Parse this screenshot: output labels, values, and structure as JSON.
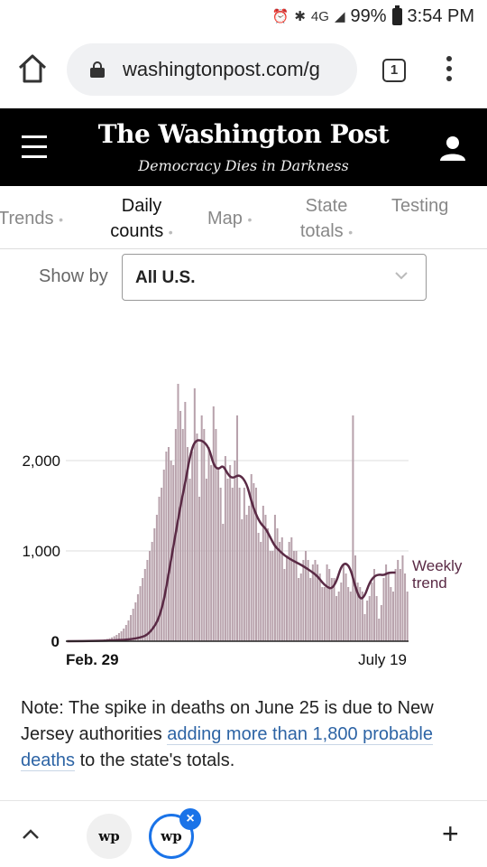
{
  "status_bar": {
    "network": "4G",
    "battery": "99%",
    "time": "3:54 PM"
  },
  "browser": {
    "url": "washingtonpost.com/g",
    "tab_count": "1"
  },
  "header": {
    "masthead": "The Washington Post",
    "tagline": "Democracy Dies in Darkness"
  },
  "tabs": [
    {
      "label": "Trends",
      "active": false
    },
    {
      "label": "Daily counts",
      "active": true
    },
    {
      "label": "Map",
      "active": false
    },
    {
      "label": "State totals",
      "active": false
    },
    {
      "label": "Testing",
      "active": false
    }
  ],
  "filter": {
    "label": "Show by",
    "value": "All U.S."
  },
  "chart_data": {
    "type": "bar",
    "x_start_label": "Feb. 29",
    "x_end_label": "July 19",
    "yticks": [
      0,
      1000,
      2000
    ],
    "ytick_labels": [
      "0",
      "1,000",
      "2,000"
    ],
    "ylim": [
      0,
      3000
    ],
    "bar_color": "#b8a2ac",
    "trend_color": "#5a2a45",
    "trend_label_line1": "Weekly",
    "trend_label_line2": "trend",
    "values": [
      0,
      0,
      0,
      0,
      1,
      1,
      1,
      2,
      2,
      3,
      4,
      5,
      7,
      9,
      11,
      15,
      20,
      26,
      33,
      42,
      55,
      70,
      90,
      110,
      140,
      180,
      230,
      290,
      360,
      430,
      520,
      610,
      700,
      800,
      900,
      1000,
      1100,
      1250,
      1400,
      1600,
      1700,
      1900,
      2100,
      2150,
      2000,
      1950,
      2350,
      2850,
      2550,
      2350,
      2650,
      2150,
      1800,
      2100,
      2800,
      2300,
      1600,
      2500,
      2350,
      1800,
      2150,
      1950,
      2600,
      2350,
      1900,
      1700,
      1300,
      2050,
      1800,
      1950,
      1700,
      2000,
      2500,
      1700,
      1350,
      1700,
      1400,
      1500,
      1850,
      1750,
      1700,
      1200,
      1100,
      1500,
      1400,
      1250,
      1000,
      1000,
      1400,
      1250,
      1100,
      1150,
      800,
      950,
      1100,
      1150,
      1000,
      1000,
      700,
      750,
      900,
      1000,
      900,
      700,
      850,
      900,
      850,
      750,
      600,
      600,
      850,
      800,
      700,
      700,
      500,
      550,
      650,
      850,
      750,
      600,
      550,
      2500,
      950,
      650,
      600,
      550,
      300,
      450,
      500,
      650,
      800,
      500,
      250,
      400,
      700,
      850,
      750,
      600,
      550,
      800,
      900,
      800,
      950,
      750,
      550
    ],
    "trend": [
      [
        0,
        0
      ],
      [
        20,
        5
      ],
      [
        30,
        30
      ],
      [
        35,
        80
      ],
      [
        40,
        300
      ],
      [
        44,
        900
      ],
      [
        48,
        1500
      ],
      [
        50,
        1750
      ],
      [
        52,
        2050
      ],
      [
        54,
        2220
      ],
      [
        57,
        2230
      ],
      [
        60,
        2150
      ],
      [
        62,
        1950
      ],
      [
        64,
        1900
      ],
      [
        66,
        1950
      ],
      [
        68,
        1850
      ],
      [
        70,
        1800
      ],
      [
        73,
        1850
      ],
      [
        76,
        1750
      ],
      [
        78,
        1550
      ],
      [
        80,
        1400
      ],
      [
        82,
        1300
      ],
      [
        84,
        1250
      ],
      [
        86,
        1150
      ],
      [
        88,
        1050
      ],
      [
        90,
        1000
      ],
      [
        92,
        950
      ],
      [
        95,
        900
      ],
      [
        98,
        860
      ],
      [
        100,
        830
      ],
      [
        103,
        780
      ],
      [
        106,
        720
      ],
      [
        108,
        650
      ],
      [
        110,
        600
      ],
      [
        112,
        580
      ],
      [
        114,
        660
      ],
      [
        116,
        830
      ],
      [
        118,
        870
      ],
      [
        120,
        800
      ],
      [
        122,
        600
      ],
      [
        124,
        460
      ],
      [
        126,
        500
      ],
      [
        128,
        650
      ],
      [
        130,
        720
      ],
      [
        132,
        740
      ],
      [
        134,
        730
      ],
      [
        136,
        760
      ],
      [
        139,
        760
      ]
    ]
  },
  "note": {
    "prefix": "Note: The spike in deaths on June 25 is due to New Jersey authorities ",
    "link": "adding more than 1,800 probable deaths",
    "suffix": " to the state's totals."
  },
  "bottom": {
    "tab1_logo": "wp",
    "tab2_logo": "wp",
    "close_glyph": "×",
    "new_tab_glyph": "+"
  }
}
